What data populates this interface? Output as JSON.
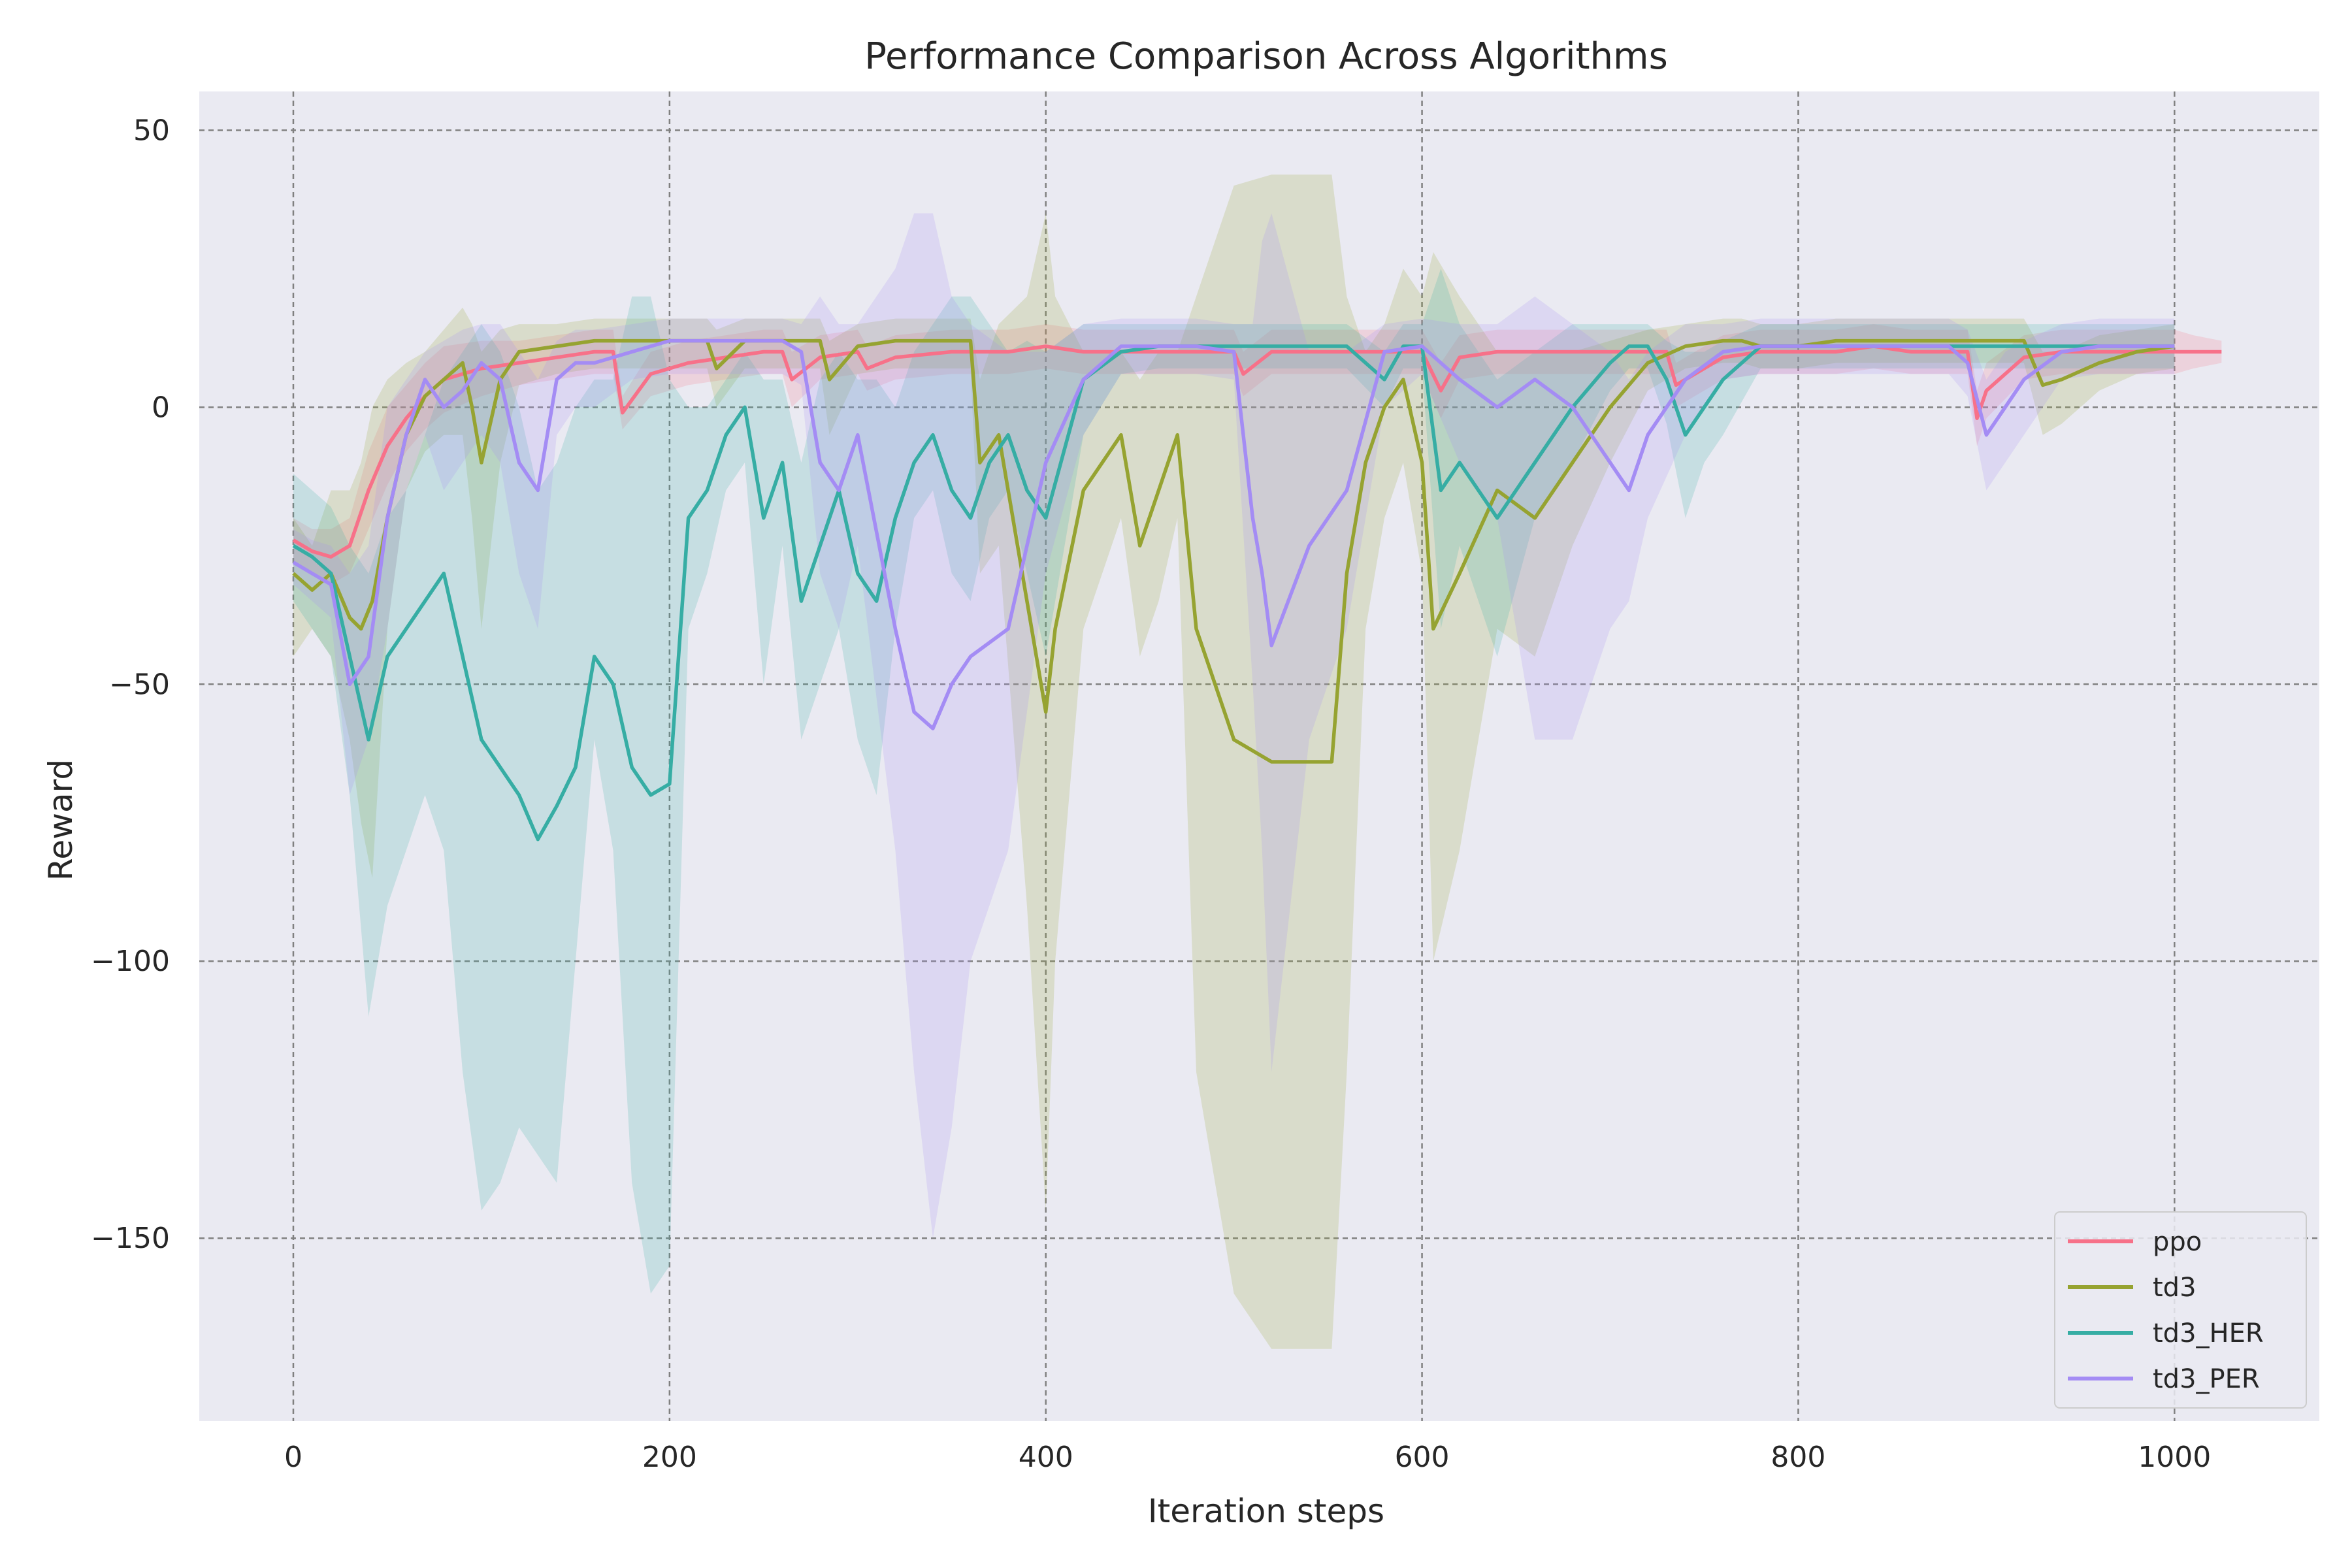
{
  "colors": {
    "background": "#ffffff",
    "plot_background": "#eaeaf2",
    "grid": "#808080",
    "text": "#262626"
  },
  "chart_data": {
    "type": "line",
    "title": "Performance Comparison Across Algorithms",
    "xlabel": "Iteration steps",
    "ylabel": "Reward",
    "xlim": [
      -50,
      1077
    ],
    "ylim": [
      -183,
      57
    ],
    "xticks": [
      0,
      200,
      400,
      600,
      800,
      1000
    ],
    "yticks": [
      50,
      0,
      -50,
      -100,
      -150
    ],
    "xtick_labels": [
      "0",
      "200",
      "400",
      "600",
      "800",
      "1000"
    ],
    "ytick_labels": [
      "50",
      "0",
      "−50",
      "−100",
      "−150"
    ],
    "grid": true,
    "grid_style": "dashed",
    "legend_position": "lower-right",
    "shaded_band": "variability band around each series",
    "series": [
      {
        "name": "ppo",
        "color": "#f77189",
        "x": [
          0,
          10,
          20,
          30,
          40,
          50,
          60,
          70,
          80,
          100,
          120,
          140,
          160,
          170,
          175,
          190,
          210,
          230,
          250,
          260,
          265,
          280,
          300,
          305,
          320,
          350,
          380,
          400,
          420,
          440,
          460,
          480,
          500,
          505,
          520,
          540,
          560,
          580,
          600,
          610,
          620,
          640,
          660,
          680,
          700,
          720,
          730,
          735,
          760,
          780,
          800,
          820,
          840,
          860,
          880,
          890,
          895,
          900,
          920,
          940,
          960,
          980,
          1000,
          1010,
          1025
        ],
        "y": [
          -24,
          -26,
          -27,
          -25,
          -15,
          -7,
          -2,
          2,
          5,
          7,
          8,
          9,
          10,
          10,
          -1,
          6,
          8,
          9,
          10,
          10,
          5,
          9,
          10,
          7,
          9,
          10,
          10,
          11,
          10,
          10,
          10,
          10,
          10,
          6,
          10,
          10,
          10,
          10,
          10,
          3,
          9,
          10,
          10,
          10,
          10,
          10,
          10,
          4,
          9,
          10,
          10,
          10,
          11,
          10,
          10,
          10,
          -2,
          3,
          9,
          10,
          10,
          10,
          10,
          10,
          10
        ],
        "lower": [
          -28,
          -30,
          -32,
          -30,
          -22,
          -14,
          -8,
          -4,
          -1,
          2,
          4,
          5,
          6,
          6,
          -4,
          2,
          4,
          5,
          6,
          6,
          0,
          5,
          6,
          3,
          5,
          6,
          6,
          7,
          6,
          6,
          6,
          6,
          6,
          2,
          6,
          6,
          6,
          6,
          6,
          -2,
          5,
          6,
          6,
          6,
          6,
          6,
          6,
          0,
          5,
          6,
          6,
          6,
          7,
          6,
          6,
          6,
          -7,
          -2,
          5,
          6,
          6,
          6,
          6,
          7,
          8
        ],
        "upper": [
          -20,
          -22,
          -22,
          -20,
          -8,
          0,
          4,
          8,
          11,
          12,
          12,
          13,
          14,
          14,
          2,
          10,
          12,
          13,
          14,
          14,
          10,
          13,
          14,
          11,
          13,
          14,
          14,
          15,
          14,
          14,
          14,
          14,
          14,
          10,
          14,
          14,
          14,
          14,
          14,
          8,
          13,
          14,
          14,
          14,
          14,
          14,
          14,
          8,
          13,
          14,
          14,
          14,
          15,
          14,
          14,
          14,
          3,
          8,
          13,
          14,
          14,
          14,
          14,
          13,
          12
        ]
      },
      {
        "name": "td3",
        "color": "#96a331",
        "x": [
          0,
          10,
          20,
          30,
          36,
          42,
          50,
          60,
          70,
          80,
          90,
          95,
          100,
          110,
          120,
          140,
          160,
          180,
          200,
          220,
          225,
          240,
          260,
          270,
          280,
          285,
          300,
          320,
          340,
          360,
          365,
          375,
          390,
          400,
          405,
          420,
          440,
          450,
          460,
          470,
          480,
          500,
          520,
          540,
          552,
          560,
          570,
          580,
          590,
          600,
          606,
          620,
          640,
          660,
          680,
          700,
          720,
          740,
          760,
          770,
          780,
          800,
          820,
          840,
          860,
          880,
          900,
          920,
          930,
          940,
          960,
          980,
          1000
        ],
        "y": [
          -30,
          -33,
          -30,
          -38,
          -40,
          -35,
          -20,
          -5,
          2,
          5,
          8,
          0,
          -10,
          5,
          10,
          11,
          12,
          12,
          12,
          12,
          7,
          12,
          12,
          12,
          12,
          5,
          11,
          12,
          12,
          12,
          -10,
          -5,
          -35,
          -55,
          -40,
          -15,
          -5,
          -25,
          -15,
          -5,
          -40,
          -60,
          -64,
          -64,
          -64,
          -30,
          -10,
          0,
          5,
          -10,
          -40,
          -30,
          -15,
          -20,
          -10,
          0,
          8,
          11,
          12,
          12,
          11,
          11,
          12,
          12,
          12,
          12,
          12,
          12,
          4,
          5,
          8,
          10,
          11
        ],
        "lower": [
          -45,
          -40,
          -45,
          -60,
          -75,
          -85,
          -40,
          -15,
          -8,
          -5,
          -5,
          -20,
          -40,
          -10,
          4,
          6,
          7,
          7,
          7,
          7,
          0,
          7,
          7,
          7,
          7,
          -5,
          6,
          7,
          7,
          7,
          -30,
          -25,
          -90,
          -145,
          -100,
          -40,
          -20,
          -45,
          -35,
          -20,
          -120,
          -160,
          -170,
          -170,
          -170,
          -120,
          -40,
          -20,
          -10,
          -30,
          -100,
          -80,
          -40,
          -45,
          -25,
          -10,
          3,
          7,
          8,
          8,
          7,
          7,
          8,
          8,
          8,
          8,
          8,
          8,
          -5,
          -3,
          3,
          6,
          7
        ],
        "upper": [
          -20,
          -25,
          -15,
          -15,
          -10,
          0,
          5,
          8,
          10,
          14,
          18,
          15,
          10,
          14,
          15,
          15,
          16,
          16,
          16,
          16,
          14,
          16,
          16,
          16,
          16,
          12,
          15,
          16,
          16,
          16,
          5,
          15,
          20,
          35,
          20,
          10,
          10,
          5,
          10,
          10,
          20,
          40,
          42,
          42,
          42,
          20,
          10,
          15,
          25,
          20,
          28,
          20,
          10,
          10,
          10,
          12,
          14,
          15,
          16,
          16,
          15,
          15,
          16,
          16,
          16,
          16,
          16,
          16,
          10,
          10,
          13,
          14,
          15
        ]
      },
      {
        "name": "td3_HER",
        "color": "#36ada4",
        "x": [
          0,
          10,
          20,
          30,
          40,
          50,
          60,
          70,
          80,
          90,
          100,
          110,
          120,
          130,
          140,
          150,
          160,
          170,
          180,
          190,
          200,
          210,
          220,
          230,
          240,
          250,
          260,
          270,
          280,
          290,
          300,
          310,
          320,
          330,
          340,
          350,
          360,
          370,
          380,
          390,
          400,
          420,
          440,
          460,
          480,
          500,
          520,
          540,
          550,
          560,
          580,
          590,
          600,
          610,
          620,
          630,
          640,
          660,
          680,
          700,
          710,
          720,
          730,
          740,
          750,
          760,
          780,
          800,
          820,
          840,
          860,
          880,
          900,
          920,
          940,
          960,
          980,
          1000
        ],
        "y": [
          -25,
          -27,
          -30,
          -45,
          -60,
          -45,
          -40,
          -35,
          -30,
          -45,
          -60,
          -65,
          -70,
          -78,
          -72,
          -65,
          -45,
          -50,
          -65,
          -70,
          -68,
          -20,
          -15,
          -5,
          0,
          -20,
          -10,
          -35,
          -25,
          -15,
          -30,
          -35,
          -20,
          -10,
          -5,
          -15,
          -20,
          -10,
          -5,
          -15,
          -20,
          5,
          10,
          11,
          11,
          11,
          11,
          11,
          11,
          11,
          5,
          11,
          11,
          -15,
          -10,
          -15,
          -20,
          -10,
          0,
          8,
          11,
          11,
          5,
          -5,
          0,
          5,
          11,
          11,
          11,
          11,
          11,
          11,
          11,
          11,
          11,
          11,
          11,
          11
        ],
        "lower": [
          -35,
          -40,
          -45,
          -70,
          -110,
          -90,
          -80,
          -70,
          -80,
          -120,
          -145,
          -140,
          -130,
          -135,
          -140,
          -100,
          -60,
          -80,
          -140,
          -160,
          -155,
          -40,
          -30,
          -15,
          -10,
          -50,
          -25,
          -60,
          -50,
          -40,
          -60,
          -70,
          -40,
          -20,
          -15,
          -30,
          -35,
          -20,
          -15,
          -30,
          -45,
          -5,
          6,
          7,
          7,
          7,
          7,
          7,
          7,
          7,
          0,
          7,
          7,
          -40,
          -25,
          -35,
          -45,
          -20,
          -10,
          3,
          7,
          7,
          -3,
          -20,
          -10,
          -5,
          7,
          7,
          7,
          7,
          7,
          7,
          7,
          7,
          7,
          7,
          7,
          7
        ],
        "upper": [
          -12,
          -15,
          -18,
          -25,
          -30,
          -20,
          -15,
          -5,
          5,
          10,
          15,
          10,
          0,
          -15,
          -10,
          0,
          5,
          5,
          20,
          20,
          5,
          0,
          0,
          5,
          10,
          5,
          5,
          -10,
          5,
          10,
          5,
          5,
          0,
          10,
          15,
          20,
          20,
          15,
          10,
          12,
          10,
          15,
          15,
          15,
          15,
          15,
          15,
          15,
          15,
          15,
          10,
          15,
          15,
          25,
          15,
          10,
          5,
          10,
          15,
          15,
          15,
          15,
          12,
          10,
          10,
          12,
          15,
          15,
          15,
          15,
          15,
          15,
          15,
          15,
          15,
          15,
          15,
          15
        ]
      },
      {
        "name": "td3_PER",
        "color": "#a48cf4",
        "x": [
          0,
          10,
          20,
          30,
          40,
          50,
          60,
          70,
          80,
          90,
          100,
          110,
          120,
          130,
          140,
          150,
          160,
          180,
          200,
          220,
          240,
          260,
          270,
          280,
          290,
          300,
          320,
          330,
          340,
          350,
          360,
          380,
          400,
          420,
          440,
          460,
          480,
          500,
          510,
          515,
          520,
          540,
          550,
          560,
          580,
          600,
          620,
          640,
          660,
          680,
          700,
          710,
          720,
          740,
          760,
          780,
          800,
          820,
          840,
          860,
          880,
          890,
          900,
          910,
          920,
          940,
          960,
          980,
          1000
        ],
        "y": [
          -28,
          -30,
          -32,
          -50,
          -45,
          -20,
          -5,
          5,
          0,
          3,
          8,
          5,
          -10,
          -15,
          5,
          8,
          8,
          10,
          12,
          12,
          12,
          12,
          10,
          -10,
          -15,
          -5,
          -40,
          -55,
          -58,
          -50,
          -45,
          -40,
          -10,
          5,
          11,
          11,
          11,
          10,
          -20,
          -30,
          -43,
          -25,
          -20,
          -15,
          10,
          11,
          5,
          0,
          5,
          0,
          -10,
          -15,
          -5,
          5,
          10,
          11,
          11,
          11,
          11,
          11,
          11,
          8,
          -5,
          0,
          5,
          10,
          11,
          11,
          11
        ],
        "lower": [
          -32,
          -35,
          -38,
          -70,
          -60,
          -40,
          -15,
          -5,
          -15,
          -10,
          -5,
          -10,
          -30,
          -40,
          -5,
          0,
          0,
          5,
          6,
          6,
          6,
          6,
          4,
          -30,
          -40,
          -25,
          -80,
          -120,
          -150,
          -130,
          -100,
          -80,
          -30,
          -5,
          6,
          6,
          6,
          5,
          -50,
          -80,
          -120,
          -60,
          -50,
          -40,
          0,
          6,
          -10,
          -20,
          -60,
          -60,
          -40,
          -35,
          -20,
          -5,
          5,
          6,
          6,
          6,
          6,
          6,
          6,
          2,
          -15,
          -10,
          -5,
          5,
          6,
          6,
          6
        ],
        "upper": [
          -22,
          -24,
          -25,
          -30,
          -25,
          0,
          5,
          10,
          12,
          14,
          15,
          15,
          10,
          5,
          12,
          14,
          14,
          15,
          16,
          16,
          16,
          16,
          15,
          20,
          15,
          15,
          25,
          35,
          35,
          20,
          15,
          10,
          10,
          15,
          16,
          16,
          16,
          15,
          15,
          30,
          35,
          10,
          10,
          10,
          15,
          16,
          15,
          15,
          20,
          15,
          10,
          5,
          10,
          15,
          15,
          16,
          16,
          16,
          16,
          16,
          16,
          14,
          5,
          10,
          12,
          15,
          16,
          16,
          16
        ]
      }
    ]
  }
}
